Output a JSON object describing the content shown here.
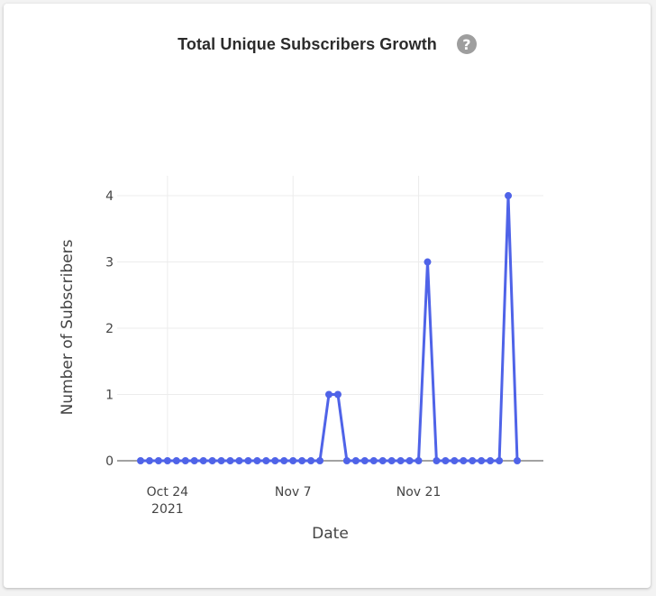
{
  "card": {
    "title": "Total Unique Subscribers Growth",
    "help_icon": "question-mark-icon",
    "help_glyph": "?"
  },
  "chart_data": {
    "type": "line",
    "xlabel": "Date",
    "ylabel": "Number of Subscribers",
    "xlim": [
      "2021-10-21",
      "2021-12-02"
    ],
    "ylim": [
      0,
      4.3
    ],
    "grid": true,
    "line_color": "#4f63e8",
    "x_ticks": [
      {
        "date": "2021-10-24",
        "label": "Oct 24",
        "sublabel": "2021"
      },
      {
        "date": "2021-11-07",
        "label": "Nov 7",
        "sublabel": ""
      },
      {
        "date": "2021-11-21",
        "label": "Nov 21",
        "sublabel": ""
      }
    ],
    "y_ticks": [
      0,
      1,
      2,
      3,
      4
    ],
    "series": [
      {
        "x": [
          "2021-10-21",
          "2021-10-22",
          "2021-10-23",
          "2021-10-24",
          "2021-10-25",
          "2021-10-26",
          "2021-10-27",
          "2021-10-28",
          "2021-10-29",
          "2021-10-30",
          "2021-10-31",
          "2021-11-01",
          "2021-11-02",
          "2021-11-03",
          "2021-11-04",
          "2021-11-05",
          "2021-11-06",
          "2021-11-07",
          "2021-11-08",
          "2021-11-09",
          "2021-11-10",
          "2021-11-11",
          "2021-11-12",
          "2021-11-13",
          "2021-11-14",
          "2021-11-15",
          "2021-11-16",
          "2021-11-17",
          "2021-11-18",
          "2021-11-19",
          "2021-11-20",
          "2021-11-21",
          "2021-11-22",
          "2021-11-23",
          "2021-11-24",
          "2021-11-25",
          "2021-11-26",
          "2021-11-27",
          "2021-11-28",
          "2021-11-29",
          "2021-11-30",
          "2021-12-01",
          "2021-12-02"
        ],
        "y": [
          0,
          0,
          0,
          0,
          0,
          0,
          0,
          0,
          0,
          0,
          0,
          0,
          0,
          0,
          0,
          0,
          0,
          0,
          0,
          0,
          0,
          1,
          1,
          0,
          0,
          0,
          0,
          0,
          0,
          0,
          0,
          0,
          3,
          0,
          0,
          0,
          0,
          0,
          0,
          0,
          0,
          4,
          0
        ]
      }
    ]
  }
}
